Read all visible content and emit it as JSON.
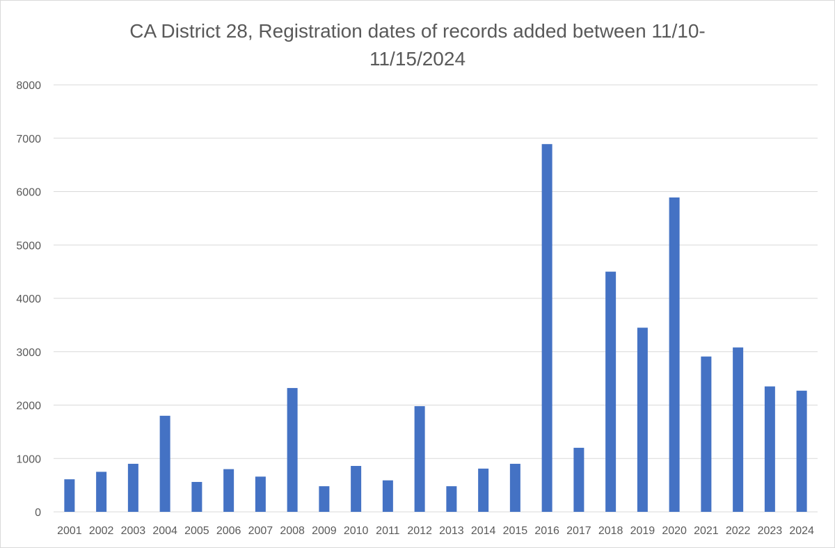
{
  "chart_data": {
    "type": "bar",
    "title_lines": [
      "CA District 28, Registration dates of records added between 11/10-",
      "11/15/2024"
    ],
    "xlabel": "",
    "ylabel": "",
    "categories": [
      "2001",
      "2002",
      "2003",
      "2004",
      "2005",
      "2006",
      "2007",
      "2008",
      "2009",
      "2010",
      "2011",
      "2012",
      "2013",
      "2014",
      "2015",
      "2016",
      "2017",
      "2018",
      "2019",
      "2020",
      "2021",
      "2022",
      "2023",
      "2024"
    ],
    "values": [
      610,
      750,
      900,
      1800,
      560,
      800,
      660,
      2320,
      480,
      860,
      590,
      1980,
      480,
      810,
      900,
      6890,
      1200,
      4500,
      3450,
      5890,
      2910,
      3080,
      2350,
      2270
    ],
    "ylim": [
      0,
      8000
    ],
    "yticks": [
      "0",
      "1000",
      "2000",
      "3000",
      "4000",
      "5000",
      "6000",
      "7000",
      "8000"
    ],
    "grid": true,
    "legend": "none",
    "colors": {
      "bar": "#4472c4",
      "grid": "#d9d9d9",
      "text": "#595959"
    }
  }
}
